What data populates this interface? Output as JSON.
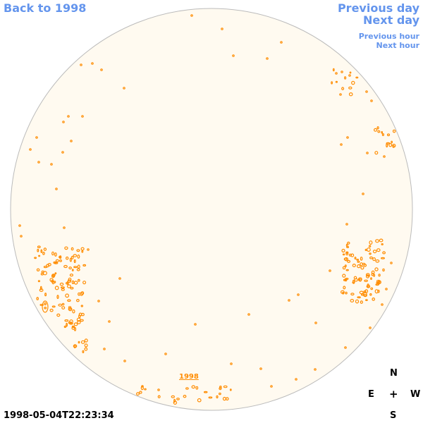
{
  "nav": {
    "back": "Back to 1998",
    "previous_day": "Previous day",
    "next_day": "Next day",
    "previous_hour": "Previous hour",
    "next_hour": "Next hour"
  },
  "disk": {
    "year_label": "1998"
  },
  "compass": {
    "north": "N",
    "south": "S",
    "east": "E",
    "west": "W",
    "center": "+"
  },
  "timestamp": "1998-05-04T22:23:34",
  "colors": {
    "link": "#6495ed",
    "disk_fill": "#fffaf0",
    "disk_edge": "#bbbbbb",
    "contour": "#ff8c00"
  }
}
